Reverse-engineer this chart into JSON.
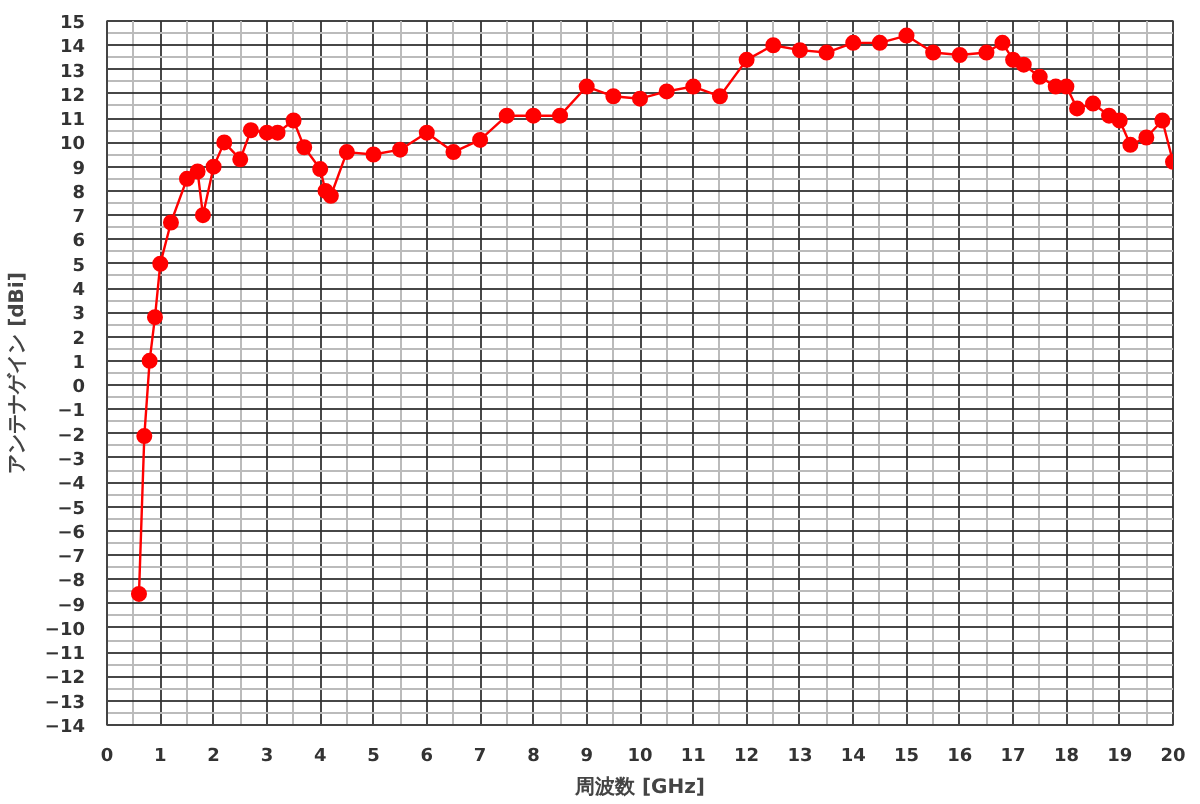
{
  "chart_data": {
    "type": "line",
    "xlabel": "周波数 [GHz]",
    "ylabel": "アンテナゲイン [dBi]",
    "xlim": [
      0,
      20
    ],
    "ylim": [
      -14,
      15
    ],
    "xticks": [
      0,
      1,
      2,
      3,
      4,
      5,
      6,
      7,
      8,
      9,
      10,
      11,
      12,
      13,
      14,
      15,
      16,
      17,
      18,
      19,
      20
    ],
    "yticks": [
      -14,
      -13,
      -12,
      -11,
      -10,
      -9,
      -8,
      -7,
      -6,
      -5,
      -4,
      -3,
      -2,
      -1,
      0,
      1,
      2,
      3,
      4,
      5,
      6,
      7,
      8,
      9,
      10,
      11,
      12,
      13,
      14,
      15
    ],
    "grid": true,
    "marker": "circle",
    "line_style": "solid",
    "series": [
      {
        "color": "#ff0000",
        "x": [
          0.6,
          0.7,
          0.8,
          0.9,
          1.0,
          1.2,
          1.5,
          1.7,
          1.8,
          2.0,
          2.2,
          2.5,
          2.7,
          3.0,
          3.2,
          3.5,
          3.7,
          4.0,
          4.1,
          4.2,
          4.5,
          5.0,
          5.5,
          6.0,
          6.5,
          7.0,
          7.5,
          8.0,
          8.5,
          9.0,
          9.5,
          10.0,
          10.5,
          11.0,
          11.5,
          12.0,
          12.5,
          13.0,
          13.5,
          14.0,
          14.5,
          15.0,
          15.5,
          16.0,
          16.5,
          16.8,
          17.0,
          17.2,
          17.5,
          17.8,
          18.0,
          18.2,
          18.5,
          18.8,
          19.0,
          19.2,
          19.5,
          19.8,
          20.0
        ],
        "values": [
          -8.6,
          -2.1,
          1.0,
          2.8,
          5.0,
          6.7,
          8.5,
          8.8,
          7.0,
          9.0,
          10.0,
          9.3,
          10.5,
          10.4,
          10.4,
          10.9,
          9.8,
          8.9,
          8.0,
          7.8,
          9.6,
          9.5,
          9.7,
          10.4,
          9.6,
          10.1,
          11.1,
          11.1,
          11.1,
          12.3,
          11.9,
          11.8,
          12.1,
          12.3,
          11.9,
          13.4,
          14.0,
          13.8,
          13.7,
          14.1,
          14.1,
          14.4,
          13.7,
          13.6,
          13.7,
          14.1,
          13.4,
          13.2,
          12.7,
          12.3,
          12.3,
          11.4,
          11.6,
          11.1,
          10.9,
          9.9,
          10.2,
          10.9,
          9.2
        ]
      }
    ]
  }
}
